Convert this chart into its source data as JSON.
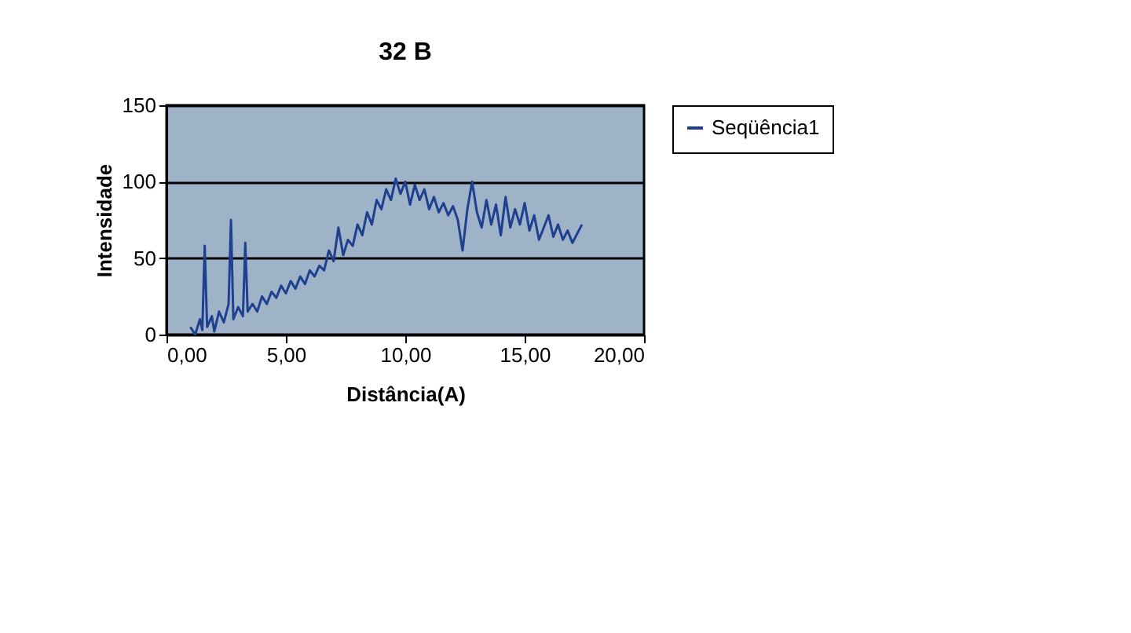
{
  "chart_data": {
    "type": "line",
    "title": "32 B",
    "xlabel": "Distância(A)",
    "ylabel": "Intensidade",
    "xlim": [
      0,
      20
    ],
    "xticks": [
      {
        "value": 0,
        "label": "0,00"
      },
      {
        "value": 5,
        "label": "5,00"
      },
      {
        "value": 10,
        "label": "10,00"
      },
      {
        "value": 15,
        "label": "15,00"
      },
      {
        "value": 20,
        "label": "20,00"
      }
    ],
    "ylim": [
      0,
      150
    ],
    "yticks": [
      0,
      50,
      100,
      150
    ],
    "grid": "y",
    "legend": "right",
    "marker": "none",
    "line_style": "solid",
    "x": [
      1.0,
      1.2,
      1.4,
      1.5,
      1.6,
      1.7,
      1.9,
      2.0,
      2.2,
      2.4,
      2.6,
      2.7,
      2.8,
      3.0,
      3.2,
      3.3,
      3.4,
      3.6,
      3.8,
      4.0,
      4.2,
      4.4,
      4.6,
      4.8,
      5.0,
      5.2,
      5.4,
      5.6,
      5.8,
      6.0,
      6.2,
      6.4,
      6.6,
      6.8,
      7.0,
      7.2,
      7.4,
      7.6,
      7.8,
      8.0,
      8.2,
      8.4,
      8.6,
      8.8,
      9.0,
      9.2,
      9.4,
      9.6,
      9.8,
      10.0,
      10.2,
      10.4,
      10.6,
      10.8,
      11.0,
      11.2,
      11.4,
      11.6,
      11.8,
      12.0,
      12.2,
      12.4,
      12.6,
      12.8,
      13.0,
      13.2,
      13.4,
      13.6,
      13.8,
      14.0,
      14.2,
      14.4,
      14.6,
      14.8,
      15.0,
      15.2,
      15.4,
      15.6,
      15.8,
      16.0,
      16.2,
      16.4,
      16.6,
      16.8,
      17.0,
      17.2,
      17.4
    ],
    "series": [
      {
        "name": "Seqüência1",
        "color": "#1f3f8f",
        "values": [
          5,
          0,
          10,
          3,
          58,
          5,
          12,
          2,
          15,
          8,
          20,
          75,
          10,
          18,
          12,
          60,
          15,
          20,
          15,
          25,
          20,
          28,
          24,
          32,
          27,
          35,
          30,
          38,
          33,
          42,
          38,
          45,
          42,
          55,
          48,
          70,
          52,
          62,
          58,
          72,
          65,
          80,
          72,
          88,
          82,
          95,
          88,
          102,
          92,
          100,
          85,
          98,
          88,
          95,
          82,
          90,
          80,
          86,
          78,
          84,
          75,
          55,
          82,
          100,
          80,
          70,
          88,
          72,
          85,
          65,
          90,
          70,
          82,
          72,
          86,
          68,
          78,
          62,
          70,
          78,
          64,
          72,
          62,
          68,
          60,
          66,
          72
        ]
      }
    ]
  }
}
